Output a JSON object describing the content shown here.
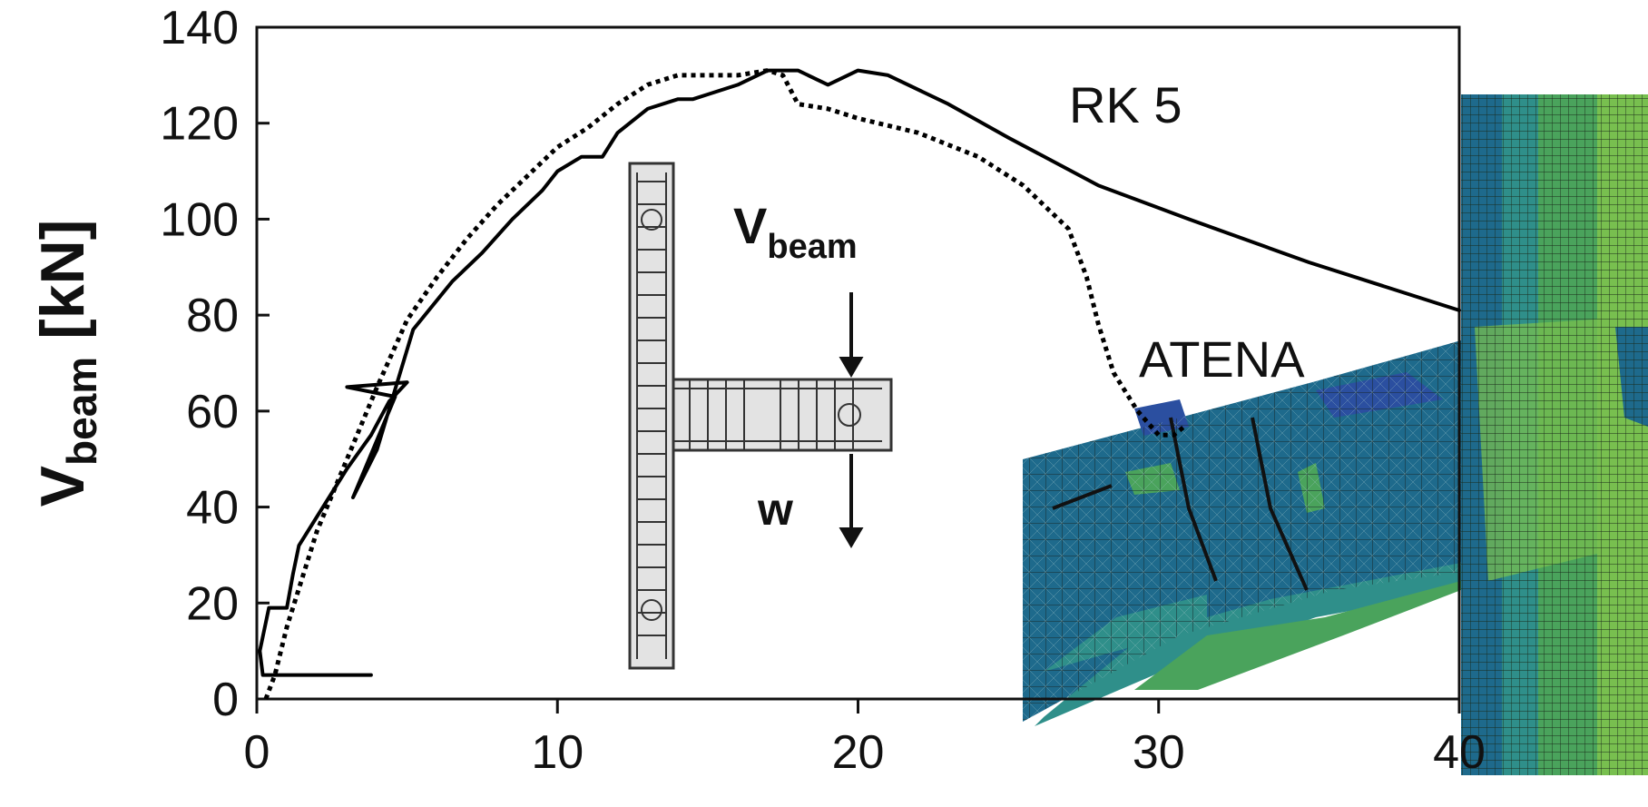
{
  "chart_data": {
    "type": "line",
    "title": "",
    "xlabel": "",
    "ylabel": {
      "main": "V",
      "sub": "beam",
      "unit": "[kN]"
    },
    "xlim": [
      0,
      40
    ],
    "ylim": [
      0,
      140
    ],
    "x_ticks": [
      0,
      10,
      20,
      30,
      40
    ],
    "y_ticks": [
      0,
      20,
      40,
      60,
      80,
      100,
      120,
      140
    ],
    "grid": false,
    "series": [
      {
        "name": "RK 5",
        "style": "solid",
        "color": "#000000",
        "x": [
          3.8,
          0.2,
          0.1,
          0.4,
          1.0,
          1.2,
          1.4,
          2.2,
          3.0,
          3.8,
          4.4,
          5.0,
          3.0,
          4.6,
          3.2,
          4.0,
          5.2,
          6.5,
          7.5,
          8.5,
          9.5,
          10.0,
          10.8,
          11.5,
          12.0,
          13.0,
          14.0,
          14.5,
          15.0,
          16.0,
          17.0,
          18.0,
          19.0,
          20.0,
          21.0,
          23.0,
          25.0,
          28.0,
          31.0,
          35.0,
          40.0
        ],
        "y": [
          5,
          5,
          10,
          19,
          19,
          26,
          32,
          40,
          48,
          55,
          62,
          66,
          65,
          63,
          42,
          52,
          77,
          87,
          93,
          100,
          106,
          110,
          113,
          113,
          118,
          123,
          125,
          125,
          126,
          128,
          131,
          131,
          128,
          131,
          130,
          124,
          117,
          107,
          100,
          91,
          81
        ]
      },
      {
        "name": "ATENA",
        "style": "dotted",
        "color": "#000000",
        "x": [
          0.3,
          0.6,
          1.0,
          2.0,
          3.0,
          4.0,
          5.0,
          6.0,
          7.0,
          8.0,
          9.0,
          10.0,
          11.0,
          12.0,
          13.0,
          14.0,
          15.0,
          16.0,
          17.0,
          17.5,
          18.0,
          19.0,
          20.0,
          22.0,
          24.0,
          25.5,
          27.0,
          27.6,
          28.0,
          28.5,
          29.3,
          30.0,
          30.5,
          30.9
        ],
        "y": [
          0,
          5,
          15,
          35,
          50,
          65,
          79,
          88,
          96,
          103,
          109,
          115,
          119,
          124,
          128,
          130,
          130,
          130,
          131,
          130,
          124,
          123,
          121,
          118,
          113,
          107,
          98,
          88,
          78,
          68,
          60,
          55,
          55,
          57
        ]
      }
    ],
    "annotations": {
      "series_label": "RK 5",
      "model_label": "ATENA",
      "load_label": {
        "main": "V",
        "sub": "beam"
      },
      "disp_label": "w"
    },
    "fe_mesh_colors": [
      "#1e6a8c",
      "#2b4fa0",
      "#2f8f8a",
      "#4aa35c",
      "#78bf4f"
    ]
  }
}
